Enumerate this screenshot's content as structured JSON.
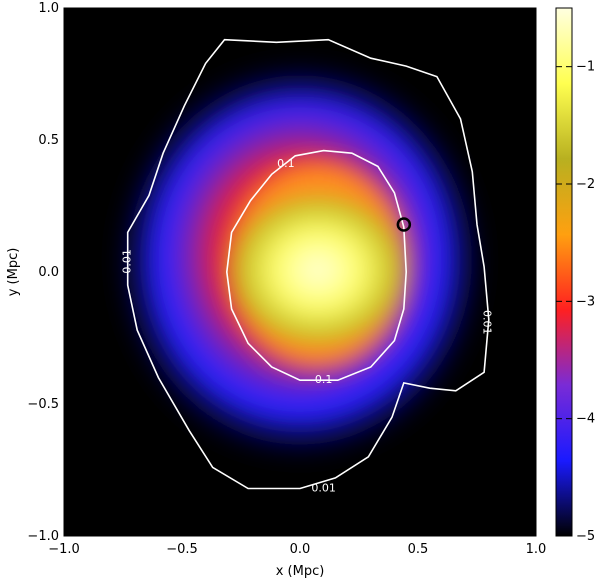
{
  "chart_data": {
    "type": "heatmap",
    "title": "",
    "xlabel": "x (Mpc)",
    "ylabel": "y (Mpc)",
    "xlim": [
      -1.0,
      1.0
    ],
    "ylim": [
      -1.0,
      1.0
    ],
    "x_ticks": [
      {
        "value": -1.0,
        "label": "−1.0"
      },
      {
        "value": -0.5,
        "label": "−0.5"
      },
      {
        "value": 0.0,
        "label": "0.0"
      },
      {
        "value": 0.5,
        "label": "0.5"
      },
      {
        "value": 1.0,
        "label": "1.0"
      }
    ],
    "y_ticks": [
      {
        "value": -1.0,
        "label": "−1.0"
      },
      {
        "value": -0.5,
        "label": "−0.5"
      },
      {
        "value": 0.0,
        "label": "0.0"
      },
      {
        "value": 0.5,
        "label": "0.5"
      },
      {
        "value": 1.0,
        "label": "1.0"
      }
    ],
    "colorbar": {
      "range": [
        -5.0,
        -0.5
      ],
      "ticks": [
        {
          "value": -1,
          "label": "−1"
        },
        {
          "value": -2,
          "label": "−2"
        },
        {
          "value": -3,
          "label": "−3"
        },
        {
          "value": -4,
          "label": "−4"
        },
        {
          "value": -5,
          "label": "−5"
        }
      ],
      "colormap": [
        "#000000",
        "#1a1aff",
        "#7a2bd6",
        "#ff2020",
        "#ffa010",
        "#b8b020",
        "#ffff50",
        "#ffffe0"
      ]
    },
    "contours": [
      {
        "level": "0.01",
        "label_positions": [
          [
            -0.73,
            0.04
          ],
          [
            0.79,
            -0.19
          ],
          [
            0.1,
            -0.82
          ]
        ],
        "label_rotations": [
          -90,
          90,
          0
        ],
        "points": [
          [
            -0.32,
            0.88
          ],
          [
            -0.1,
            0.87
          ],
          [
            0.12,
            0.88
          ],
          [
            0.3,
            0.81
          ],
          [
            0.45,
            0.78
          ],
          [
            0.58,
            0.74
          ],
          [
            0.68,
            0.58
          ],
          [
            0.73,
            0.38
          ],
          [
            0.75,
            0.18
          ],
          [
            0.78,
            0.02
          ],
          [
            0.8,
            -0.18
          ],
          [
            0.78,
            -0.38
          ],
          [
            0.66,
            -0.45
          ],
          [
            0.55,
            -0.44
          ],
          [
            0.44,
            -0.42
          ],
          [
            0.39,
            -0.55
          ],
          [
            0.29,
            -0.7
          ],
          [
            0.15,
            -0.78
          ],
          [
            0.0,
            -0.82
          ],
          [
            -0.22,
            -0.82
          ],
          [
            -0.37,
            -0.74
          ],
          [
            -0.47,
            -0.6
          ],
          [
            -0.6,
            -0.4
          ],
          [
            -0.69,
            -0.22
          ],
          [
            -0.73,
            -0.05
          ],
          [
            -0.73,
            0.15
          ],
          [
            -0.64,
            0.29
          ],
          [
            -0.58,
            0.45
          ],
          [
            -0.49,
            0.63
          ],
          [
            -0.4,
            0.79
          ]
        ]
      },
      {
        "level": "0.1",
        "label_positions": [
          [
            -0.06,
            0.41
          ],
          [
            0.1,
            -0.41
          ]
        ],
        "label_rotations": [
          0,
          0
        ],
        "points": [
          [
            -0.02,
            0.44
          ],
          [
            0.1,
            0.46
          ],
          [
            0.22,
            0.45
          ],
          [
            0.33,
            0.4
          ],
          [
            0.4,
            0.3
          ],
          [
            0.44,
            0.17
          ],
          [
            0.45,
            0.0
          ],
          [
            0.44,
            -0.14
          ],
          [
            0.4,
            -0.26
          ],
          [
            0.3,
            -0.36
          ],
          [
            0.16,
            -0.41
          ],
          [
            0.0,
            -0.41
          ],
          [
            -0.12,
            -0.36
          ],
          [
            -0.22,
            -0.27
          ],
          [
            -0.29,
            -0.14
          ],
          [
            -0.31,
            0.0
          ],
          [
            -0.29,
            0.15
          ],
          [
            -0.21,
            0.27
          ],
          [
            -0.12,
            0.37
          ]
        ]
      }
    ],
    "marker": {
      "shape": "circle",
      "x": 0.44,
      "y": 0.18
    }
  }
}
